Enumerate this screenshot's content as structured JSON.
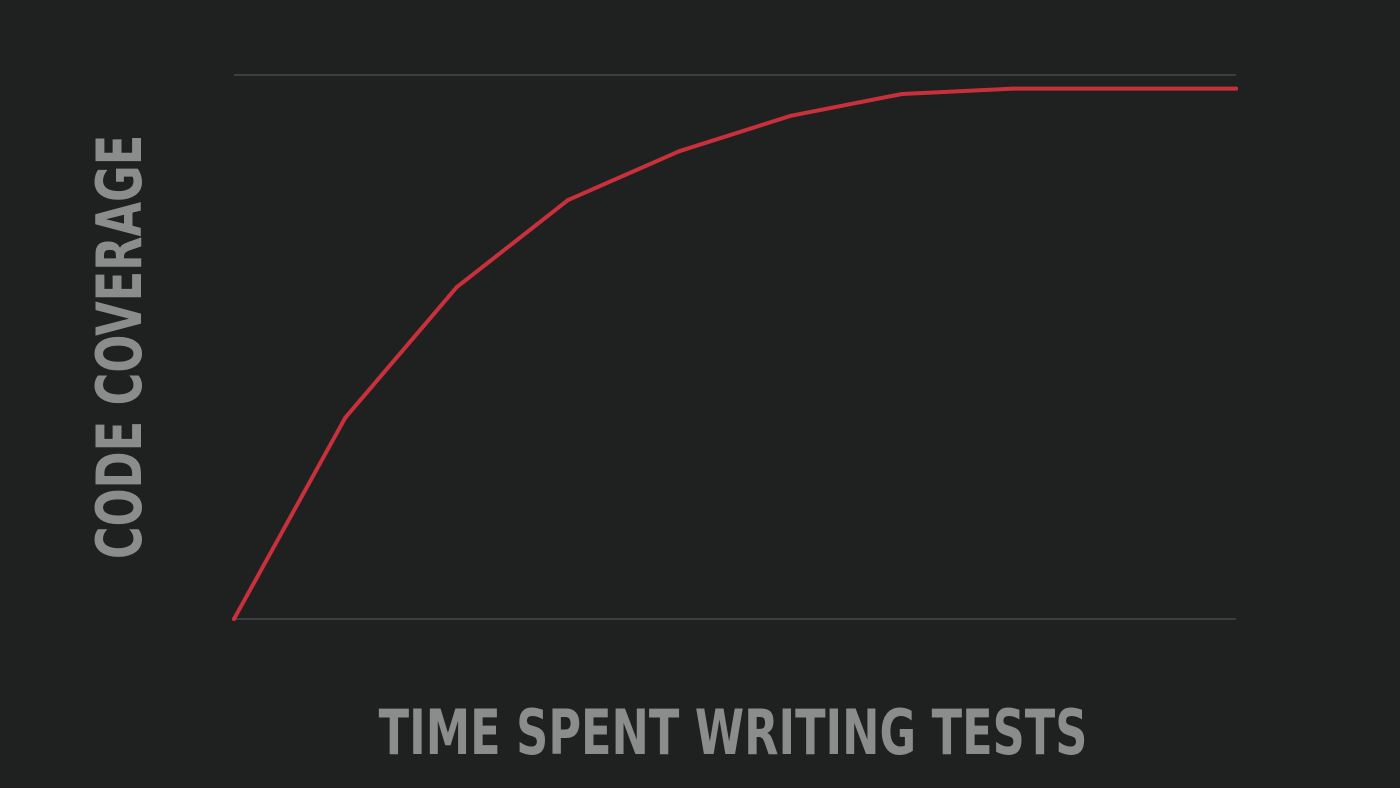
{
  "colors": {
    "background": "#1f2020",
    "line": "#c8303c",
    "gridline": "#3c3d3d",
    "axis_label": "#8b8c8c"
  },
  "chart_data": {
    "type": "line",
    "title": "",
    "xlabel": "TIME SPENT WRITING TESTS",
    "ylabel": "CODE COVERAGE",
    "xlim": [
      0,
      9
    ],
    "ylim": [
      0,
      100
    ],
    "grid": false,
    "legend": "none",
    "tick_labels_shown": false,
    "series": [
      {
        "x": [
          0,
          1,
          2,
          3,
          4,
          5,
          6,
          7,
          8,
          9
        ],
        "y": [
          0,
          37,
          61,
          77,
          86,
          92.5,
          96.5,
          97.5,
          97.5,
          97.5
        ]
      }
    ]
  }
}
